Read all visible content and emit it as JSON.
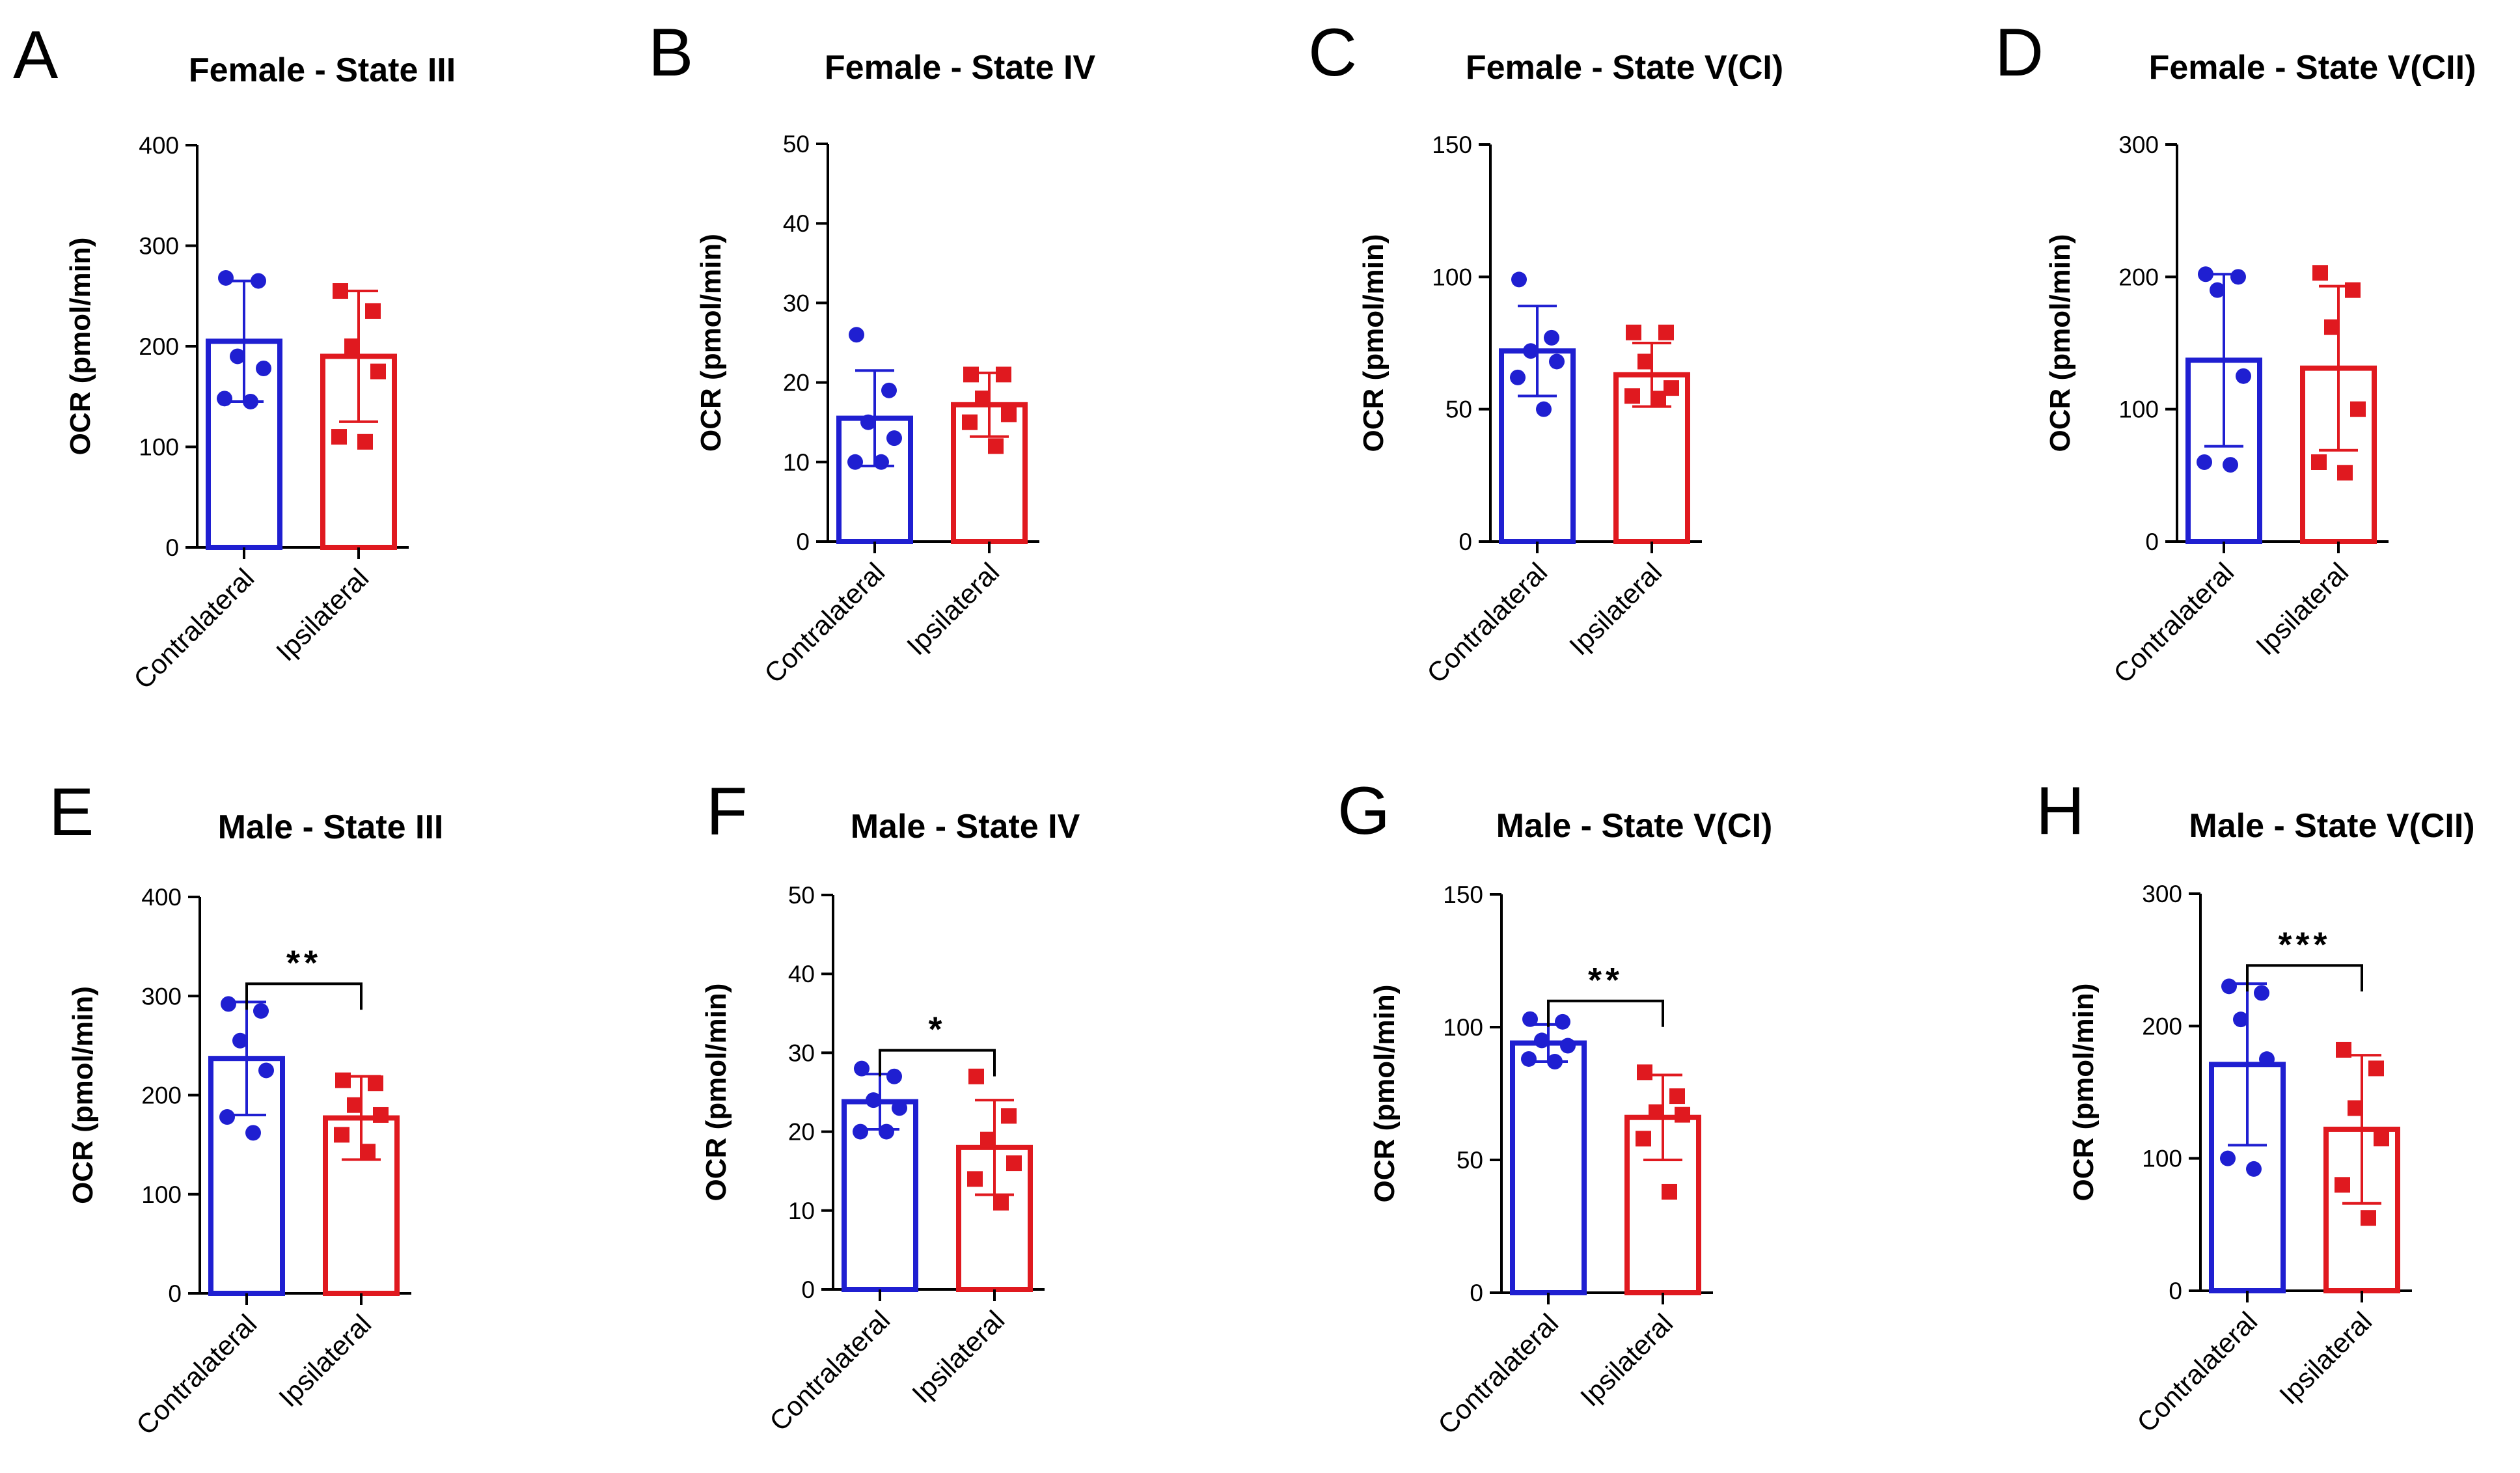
{
  "chart_data": [
    {
      "type": "bar",
      "panel": "A",
      "title": "Female - State III",
      "xlabel": "",
      "ylabel": "OCR (pmol/min)",
      "categories": [
        "Contralateral",
        "Ipsilateral"
      ],
      "ylim": [
        0,
        400
      ],
      "yticks": [
        0,
        100,
        200,
        300,
        400
      ],
      "means": [
        205,
        190
      ],
      "sd": [
        60,
        65
      ],
      "points": [
        [
          268,
          265,
          190,
          178,
          148,
          145
        ],
        [
          255,
          235,
          200,
          175,
          110,
          105
        ]
      ],
      "colors": [
        "#1f1fd1",
        "#e0191f"
      ],
      "significance": ""
    },
    {
      "type": "bar",
      "panel": "B",
      "title": "Female - State IV",
      "xlabel": "",
      "ylabel": "OCR (pmol/min)",
      "categories": [
        "Contralateral",
        "Ipsilateral"
      ],
      "ylim": [
        0,
        50
      ],
      "yticks": [
        0,
        10,
        20,
        30,
        40,
        50
      ],
      "means": [
        15.5,
        17.2
      ],
      "sd": [
        6,
        4
      ],
      "points": [
        [
          26,
          19,
          15,
          13,
          10,
          10
        ],
        [
          21,
          21,
          18,
          16,
          15,
          12
        ]
      ],
      "colors": [
        "#1f1fd1",
        "#e0191f"
      ],
      "significance": ""
    },
    {
      "type": "bar",
      "panel": "C",
      "title": "Female - State V(CI)",
      "xlabel": "",
      "ylabel": "OCR (pmol/min)",
      "categories": [
        "Contralateral",
        "Ipsilateral"
      ],
      "ylim": [
        0,
        150
      ],
      "yticks": [
        0,
        50,
        100,
        150
      ],
      "means": [
        72,
        63
      ],
      "sd": [
        17,
        12
      ],
      "points": [
        [
          99,
          77,
          72,
          68,
          62,
          50
        ],
        [
          79,
          79,
          68,
          58,
          55,
          54
        ]
      ],
      "colors": [
        "#1f1fd1",
        "#e0191f"
      ],
      "significance": ""
    },
    {
      "type": "bar",
      "panel": "D",
      "title": "Female - State V(CII)",
      "xlabel": "",
      "ylabel": "OCR (pmol/min)",
      "categories": [
        "Contralateral",
        "Ipsilateral"
      ],
      "ylim": [
        0,
        300
      ],
      "yticks": [
        0,
        100,
        200,
        300
      ],
      "means": [
        137,
        131
      ],
      "sd": [
        65,
        62
      ],
      "points": [
        [
          202,
          200,
          190,
          125,
          60,
          58
        ],
        [
          203,
          190,
          162,
          100,
          60,
          52
        ]
      ],
      "colors": [
        "#1f1fd1",
        "#e0191f"
      ],
      "significance": ""
    },
    {
      "type": "bar",
      "panel": "E",
      "title": "Male - State III",
      "xlabel": "",
      "ylabel": "OCR (pmol/min)",
      "categories": [
        "Contralateral",
        "Ipsilateral"
      ],
      "ylim": [
        0,
        400
      ],
      "yticks": [
        0,
        100,
        200,
        300,
        400
      ],
      "means": [
        237,
        177
      ],
      "sd": [
        57,
        42
      ],
      "points": [
        [
          292,
          285,
          255,
          225,
          178,
          162
        ],
        [
          215,
          212,
          190,
          180,
          160,
          143
        ]
      ],
      "colors": [
        "#1f1fd1",
        "#e0191f"
      ],
      "significance": "**"
    },
    {
      "type": "bar",
      "panel": "F",
      "title": "Male - State IV",
      "xlabel": "",
      "ylabel": "OCR (pmol/min)",
      "categories": [
        "Contralateral",
        "Ipsilateral"
      ],
      "ylim": [
        0,
        50
      ],
      "yticks": [
        0,
        10,
        20,
        30,
        40,
        50
      ],
      "means": [
        23.8,
        18
      ],
      "sd": [
        3.5,
        6
      ],
      "points": [
        [
          28,
          27,
          24,
          23,
          20,
          20
        ],
        [
          27,
          22,
          19,
          16,
          14,
          11
        ]
      ],
      "colors": [
        "#1f1fd1",
        "#e0191f"
      ],
      "significance": "*"
    },
    {
      "type": "bar",
      "panel": "G",
      "title": "Male - State V(CI)",
      "xlabel": "",
      "ylabel": "OCR (pmol/min)",
      "categories": [
        "Contralateral",
        "Ipsilateral"
      ],
      "ylim": [
        0,
        150
      ],
      "yticks": [
        0,
        50,
        100,
        150
      ],
      "means": [
        94,
        66
      ],
      "sd": [
        7,
        16
      ],
      "points": [
        [
          103,
          102,
          95,
          93,
          88,
          87
        ],
        [
          83,
          74,
          68,
          67,
          58,
          38
        ]
      ],
      "colors": [
        "#1f1fd1",
        "#e0191f"
      ],
      "significance": "**"
    },
    {
      "type": "bar",
      "panel": "H",
      "title": "Male - State V(CII)",
      "xlabel": "",
      "ylabel": "OCR (pmol/min)",
      "categories": [
        "Contralateral",
        "Ipsilateral"
      ],
      "ylim": [
        0,
        300
      ],
      "yticks": [
        0,
        100,
        200,
        300
      ],
      "means": [
        171,
        122
      ],
      "sd": [
        61,
        56
      ],
      "points": [
        [
          230,
          225,
          205,
          175,
          100,
          92
        ],
        [
          182,
          168,
          138,
          115,
          80,
          55
        ]
      ],
      "colors": [
        "#1f1fd1",
        "#e0191f"
      ],
      "significance": "***"
    }
  ]
}
